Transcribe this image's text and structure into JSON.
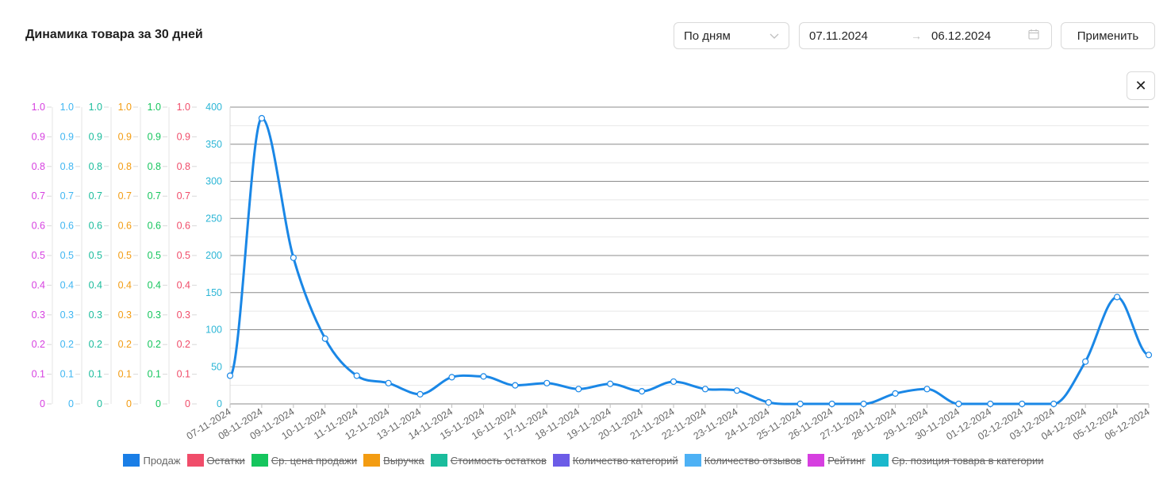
{
  "header": {
    "title": "Динамика товара за 30 дней"
  },
  "controls": {
    "period": "По дням",
    "date_from": "07.11.2024",
    "date_arrow": "→",
    "date_to": "06.12.2024",
    "apply_label": "Применить",
    "close_label": "✕"
  },
  "chart_data": {
    "type": "line",
    "x": [
      "07-11-2024",
      "08-11-2024",
      "09-11-2024",
      "10-11-2024",
      "11-11-2024",
      "12-11-2024",
      "13-11-2024",
      "14-11-2024",
      "15-11-2024",
      "16-11-2024",
      "17-11-2024",
      "18-11-2024",
      "19-11-2024",
      "20-11-2024",
      "21-11-2024",
      "22-11-2024",
      "23-11-2024",
      "24-11-2024",
      "25-11-2024",
      "26-11-2024",
      "27-11-2024",
      "28-11-2024",
      "29-11-2024",
      "30-11-2024",
      "01-12-2024",
      "02-12-2024",
      "03-12-2024",
      "04-12-2024",
      "05-12-2024",
      "06-12-2024"
    ],
    "series": [
      {
        "name": "Продаж",
        "color": "#1a87e6",
        "visible": true,
        "values": [
          38,
          385,
          197,
          88,
          38,
          28,
          13,
          36,
          37,
          25,
          28,
          20,
          27,
          17,
          30,
          20,
          18,
          2,
          0,
          0,
          0,
          14,
          20,
          0,
          0,
          0,
          0,
          57,
          144,
          66
        ]
      }
    ],
    "ylim": [
      0,
      400
    ],
    "primary_ticks": [
      "0",
      "50",
      "100",
      "150",
      "200",
      "250",
      "300",
      "350",
      "400"
    ],
    "secondary_ticks": [
      "0",
      "0.1",
      "0.2",
      "0.3",
      "0.4",
      "0.5",
      "0.6",
      "0.7",
      "0.8",
      "0.9",
      "1.0"
    ],
    "secondary_axes": [
      {
        "color": "#d63fe0"
      },
      {
        "color": "#3fb6f2"
      },
      {
        "color": "#1abc9c"
      },
      {
        "color": "#f39c12"
      },
      {
        "color": "#15c55d"
      },
      {
        "color": "#f04d6a"
      }
    ],
    "primary_axis_color": "#2cb6d6",
    "grid": true,
    "legend_position": "bottom",
    "legend": [
      {
        "label": "Продаж",
        "color": "#1a7ee6",
        "active": true
      },
      {
        "label": "Остатки",
        "color": "#f04d6a",
        "active": false
      },
      {
        "label": "Ср. цена продажи",
        "color": "#15c55d",
        "active": false
      },
      {
        "label": "Выручка",
        "color": "#f39c12",
        "active": false
      },
      {
        "label": "Стоимость остатков",
        "color": "#1abc9c",
        "active": false
      },
      {
        "label": "Количество категорий",
        "color": "#6c5ce7",
        "active": false
      },
      {
        "label": "Количество отзывов",
        "color": "#4db1f5",
        "active": false
      },
      {
        "label": "Рейтинг",
        "color": "#d63fe0",
        "active": false
      },
      {
        "label": "Ср. позиция товара в категории",
        "color": "#1ab8cc",
        "active": false
      }
    ]
  }
}
